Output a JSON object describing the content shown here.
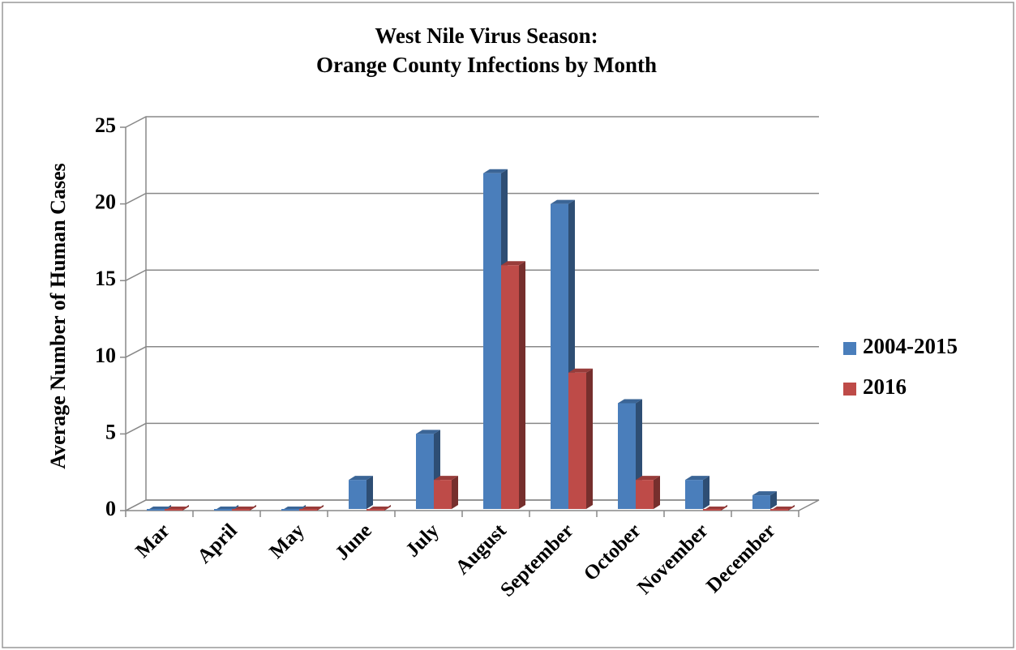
{
  "chart_data": {
    "type": "bar3d",
    "title": [
      "West Nile Virus Season:",
      "Orange County Infections by Month"
    ],
    "y_label": "Average Number of Human Cases",
    "categories": [
      "Mar",
      "April",
      "May",
      "June",
      "July",
      "August",
      "September",
      "October",
      "November",
      "December"
    ],
    "series": [
      {
        "name": "2004-2015",
        "color": "#4a7ebb",
        "values": [
          0,
          0,
          0,
          2,
          5,
          22,
          20,
          7,
          2,
          1
        ]
      },
      {
        "name": "2016",
        "color": "#be4b48",
        "values": [
          0,
          0,
          0,
          0,
          2,
          16,
          9,
          2,
          0,
          0
        ]
      }
    ],
    "ylim": [
      0,
      25
    ],
    "yticks": [
      0,
      5,
      10,
      15,
      20,
      25
    ],
    "grid": true,
    "legend": "right"
  }
}
